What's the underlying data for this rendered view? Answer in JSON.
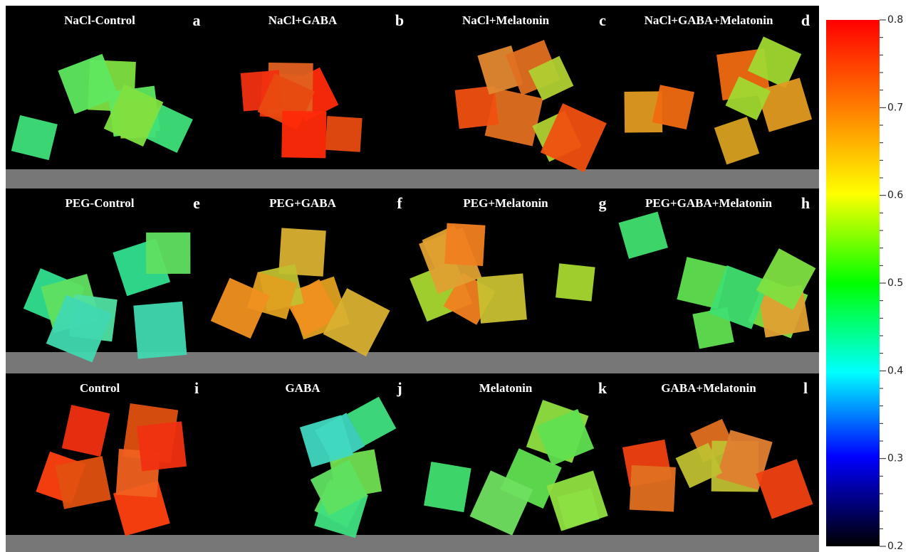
{
  "panels": [
    {
      "title": "NaCl-Control",
      "letter": "a"
    },
    {
      "title": "NaCl+GABA",
      "letter": "b"
    },
    {
      "title": "NaCl+Melatonin",
      "letter": "c"
    },
    {
      "title": "NaCl+GABA+Melatonin",
      "letter": "d"
    },
    {
      "title": "PEG-Control",
      "letter": "e"
    },
    {
      "title": "PEG+GABA",
      "letter": "f"
    },
    {
      "title": "PEG+Melatonin",
      "letter": "g"
    },
    {
      "title": "PEG+GABA+Melatonin",
      "letter": "h"
    },
    {
      "title": "Control",
      "letter": "i"
    },
    {
      "title": "GABA",
      "letter": "j"
    },
    {
      "title": "Melatonin",
      "letter": "k"
    },
    {
      "title": "GABA+Melatonin",
      "letter": "l"
    }
  ],
  "colorbar": {
    "ticks": [
      0.2,
      0.3,
      0.4,
      0.5,
      0.6,
      0.7,
      0.8
    ]
  }
}
